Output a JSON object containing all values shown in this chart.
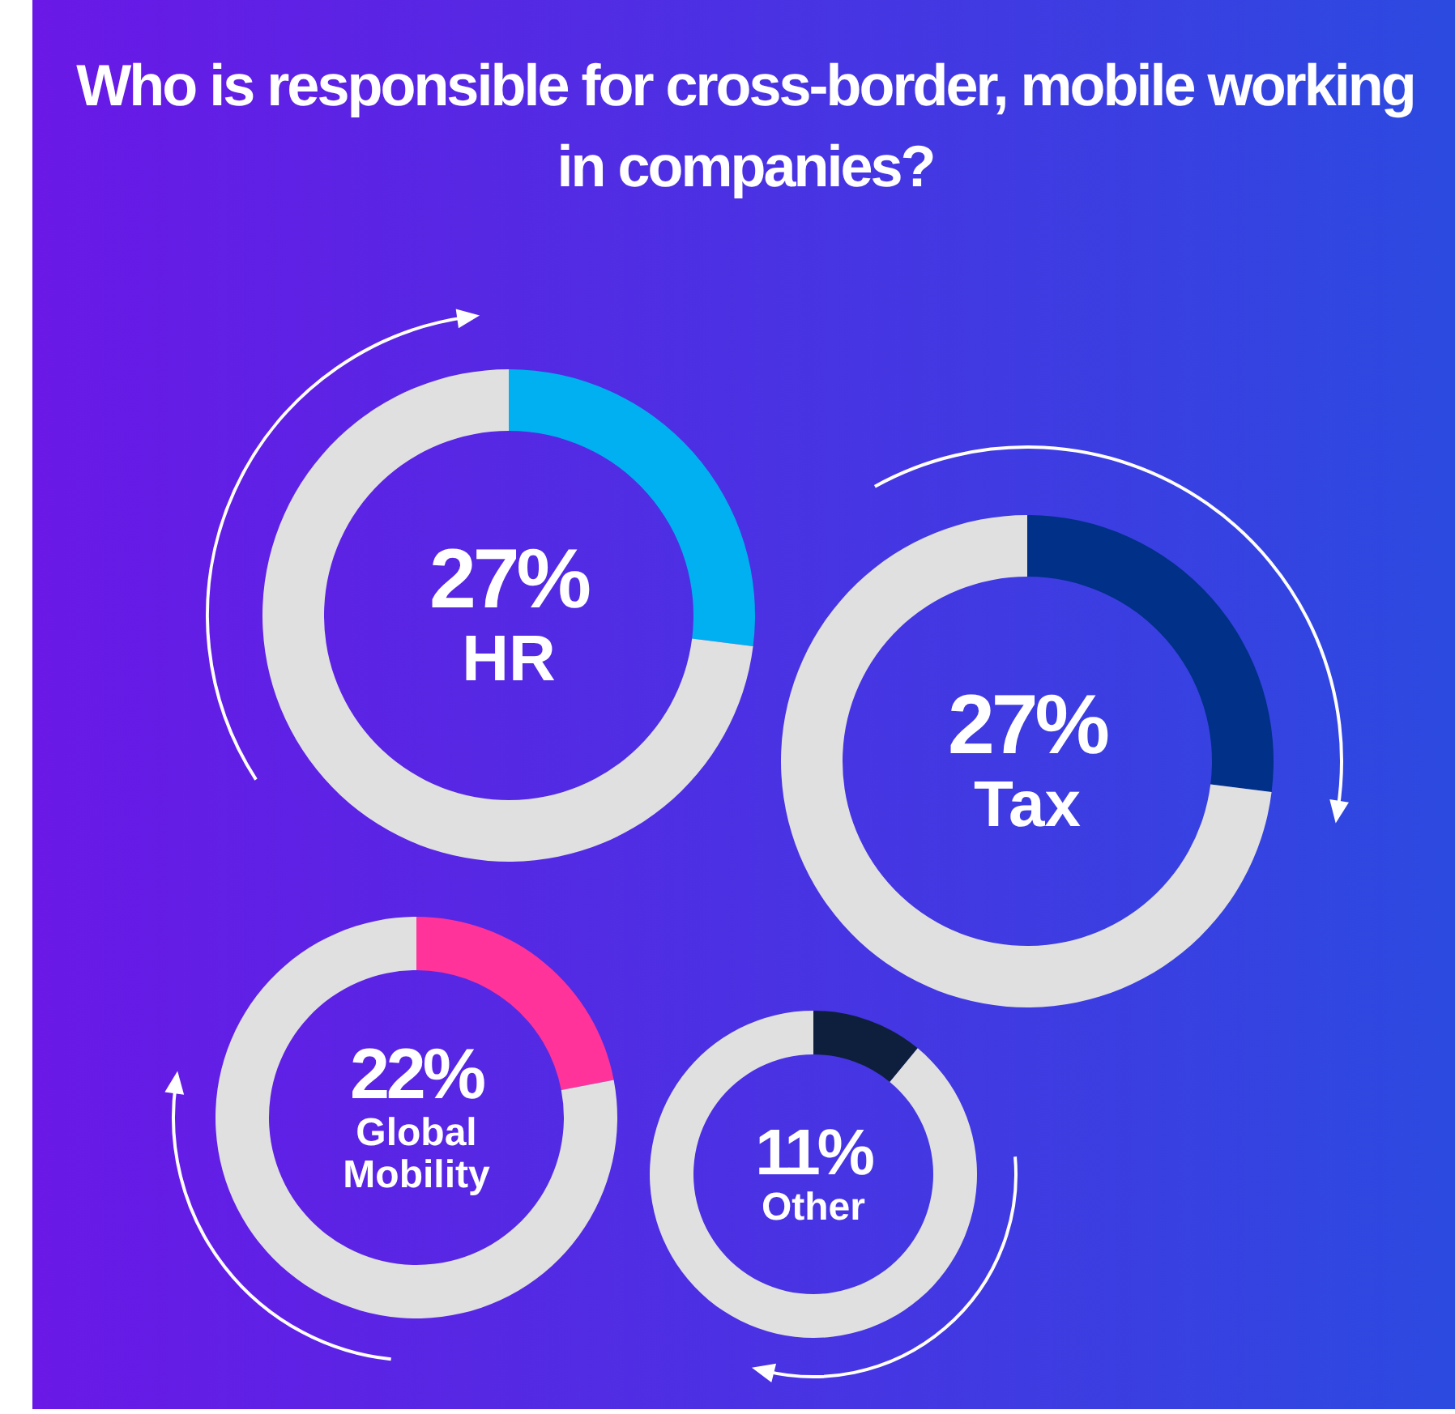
{
  "chart_data": [
    {
      "type": "donut",
      "title": "Who is responsible for cross-border, mobile working in companies?",
      "categories": [
        "HR",
        null
      ],
      "values": [
        27,
        73
      ],
      "colors": [
        "#00b0f0",
        "#e0e0e0"
      ],
      "value_labels": [
        "27%",
        null
      ]
    },
    {
      "type": "donut",
      "categories": [
        "Tax",
        null
      ],
      "values": [
        27,
        73
      ],
      "colors": [
        "#003087",
        "#e0e0e0"
      ],
      "value_labels": [
        "27%",
        null
      ]
    },
    {
      "type": "donut",
      "categories": [
        "Global Mobility",
        null
      ],
      "values": [
        22,
        78
      ],
      "colors": [
        "#ff3399",
        "#e0e0e0"
      ],
      "value_labels": [
        "22%",
        null
      ]
    },
    {
      "type": "donut",
      "categories": [
        "Other",
        null
      ],
      "values": [
        11,
        89
      ],
      "colors": [
        "#0d1f3c",
        "#e0e0e0"
      ],
      "value_labels": [
        "11%",
        null
      ]
    }
  ]
}
